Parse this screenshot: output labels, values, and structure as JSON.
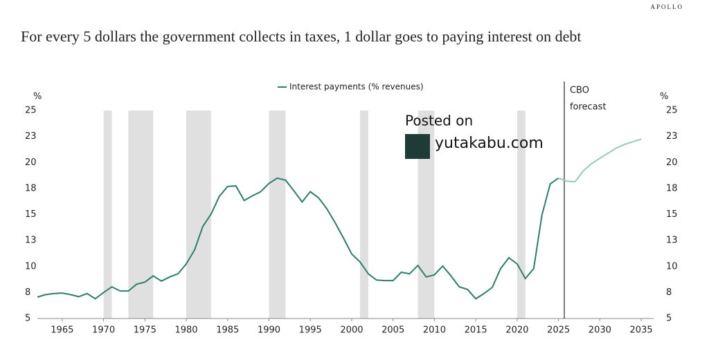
{
  "brand": "APOLLO",
  "chart_data": {
    "type": "line",
    "title": "For every 5 dollars the government collects in taxes, 1 dollar goes to paying interest on debt",
    "y_label": "%",
    "x": [
      1962,
      1963,
      1964,
      1965,
      1966,
      1967,
      1968,
      1969,
      1970,
      1971,
      1972,
      1973,
      1974,
      1975,
      1976,
      1977,
      1978,
      1979,
      1980,
      1981,
      1982,
      1983,
      1984,
      1985,
      1986,
      1987,
      1988,
      1989,
      1990,
      1991,
      1992,
      1993,
      1994,
      1995,
      1996,
      1997,
      1998,
      1999,
      2000,
      2001,
      2002,
      2003,
      2004,
      2005,
      2006,
      2007,
      2008,
      2009,
      2010,
      2011,
      2012,
      2013,
      2014,
      2015,
      2016,
      2017,
      2018,
      2019,
      2020,
      2021,
      2022,
      2023,
      2024,
      2025,
      2026,
      2027,
      2028,
      2029,
      2030,
      2031,
      2032,
      2033,
      2034,
      2035
    ],
    "series": [
      {
        "name": "Interest payments (% revenues)",
        "color": "#2b7d6c",
        "values": [
          7.06,
          7.3,
          7.4,
          7.45,
          7.3,
          7.1,
          7.4,
          6.9,
          7.5,
          8.05,
          7.65,
          7.65,
          8.3,
          8.5,
          9.1,
          8.6,
          9.0,
          9.3,
          10.25,
          11.6,
          13.85,
          15.05,
          16.75,
          17.7,
          17.75,
          16.35,
          16.8,
          17.2,
          18.0,
          18.5,
          18.3,
          17.3,
          16.2,
          17.2,
          16.6,
          15.55,
          14.2,
          12.75,
          11.2,
          10.45,
          9.3,
          8.7,
          8.65,
          8.65,
          9.45,
          9.3,
          10.1,
          9.0,
          9.2,
          10.05,
          9.1,
          8.05,
          7.8,
          6.9,
          7.4,
          8.0,
          9.8,
          10.85,
          10.25,
          8.85,
          9.8,
          14.95,
          17.95,
          18.5,
          null,
          null,
          null,
          null,
          null,
          null,
          null,
          null,
          null,
          null
        ]
      },
      {
        "color": "#93c9bb",
        "values": [
          null,
          null,
          null,
          null,
          null,
          null,
          null,
          null,
          null,
          null,
          null,
          null,
          null,
          null,
          null,
          null,
          null,
          null,
          null,
          null,
          null,
          null,
          null,
          null,
          null,
          null,
          null,
          null,
          null,
          null,
          null,
          null,
          null,
          null,
          null,
          null,
          null,
          null,
          null,
          null,
          null,
          null,
          null,
          null,
          null,
          null,
          null,
          null,
          null,
          null,
          null,
          null,
          null,
          null,
          null,
          null,
          null,
          null,
          null,
          null,
          null,
          null,
          null,
          18.5,
          18.2,
          18.15,
          19.2,
          19.9,
          20.4,
          20.9,
          21.4,
          21.75,
          22.0,
          22.25
        ]
      }
    ],
    "xlim": [
      1962,
      2036.5
    ],
    "xticks": [
      1965,
      1970,
      1975,
      1980,
      1985,
      1990,
      1995,
      2000,
      2005,
      2010,
      2015,
      2020,
      2025,
      2030,
      2035
    ],
    "ylim": [
      5,
      25
    ],
    "yticks": [
      5,
      {
        "value": 7.5,
        "label": "8"
      },
      10,
      {
        "value": 12.5,
        "label": "13"
      },
      15,
      {
        "value": 17.5,
        "label": "18"
      },
      20,
      {
        "value": 22.5,
        "label": "23"
      },
      25
    ],
    "shaded_ranges": [
      [
        1970,
        1971
      ],
      [
        1973,
        1976
      ],
      [
        1980,
        1983
      ],
      [
        1990,
        1992
      ],
      [
        2001,
        2002
      ],
      [
        2008,
        2010
      ],
      [
        2020,
        2021
      ]
    ],
    "shade_color": "#e0e0e0",
    "forecast": {
      "x": 2025.7,
      "label": [
        "CBO",
        "forecast"
      ]
    },
    "legend": "top"
  },
  "watermark": {
    "line1": "Posted on",
    "site": "yutakabu.com"
  }
}
